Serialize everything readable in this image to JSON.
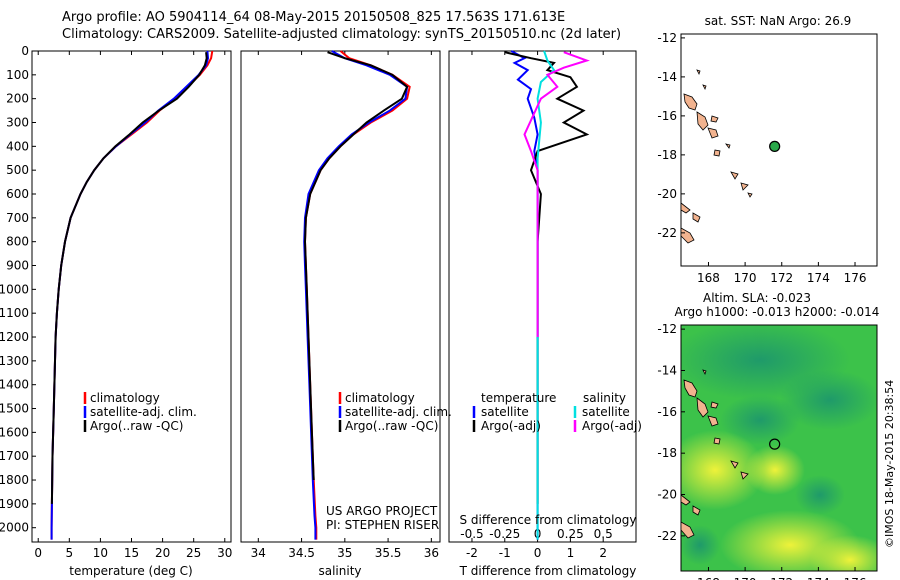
{
  "header": {
    "line1": "Argo profile: AO 5904114_64 08-May-2015 20150508_825 17.563S 171.613E",
    "line2": "Climatology: CARS2009. Satellite-adjusted climatology: synTS_20150510.nc (2d later)"
  },
  "side_note": "©IMOS 18-May-2015 20:38:54",
  "project_text": [
    "US ARGO PROJECT",
    "PI: STEPHEN RISER"
  ],
  "colors": {
    "climatology": "#ff0000",
    "satellite": "#0000ff",
    "argo": "#000000",
    "sal_satellite": "#00e0e0",
    "sal_argo": "#ff00ff",
    "land": "#f2b38f",
    "float_marker": "#2aa84a"
  },
  "chart_data": [
    {
      "id": "temperature",
      "type": "line",
      "xlabel": "temperature (deg C)",
      "ylabel": "",
      "xlim": [
        -1,
        31
      ],
      "ylim": [
        2060,
        0
      ],
      "xticks": [
        0,
        5,
        10,
        15,
        20,
        25,
        30
      ],
      "yticks": [
        0,
        100,
        200,
        300,
        400,
        500,
        600,
        700,
        800,
        900,
        1000,
        1100,
        1200,
        1300,
        1400,
        1500,
        1600,
        1700,
        1800,
        1900,
        2000
      ],
      "legend": [
        "climatology",
        "satellite-adj. clim.",
        "Argo(..raw -QC)"
      ],
      "series": [
        {
          "name": "climatology",
          "color_key": "climatology",
          "x": [
            28.0,
            27.8,
            27.2,
            26.0,
            24.0,
            22.0,
            19.5,
            17.5,
            15.0,
            12.5,
            10.5,
            9.0,
            7.8,
            6.8,
            5.2,
            4.3,
            3.7,
            3.3,
            3.0,
            2.8,
            2.6,
            2.5,
            2.3,
            2.2,
            2.15,
            2.15
          ],
          "y": [
            0,
            30,
            60,
            100,
            150,
            200,
            250,
            300,
            350,
            400,
            450,
            500,
            550,
            600,
            700,
            800,
            900,
            1000,
            1100,
            1200,
            1400,
            1500,
            1700,
            1900,
            2000,
            2050
          ]
        },
        {
          "name": "satellite-adj. clim.",
          "color_key": "satellite",
          "x": [
            27.2,
            27.3,
            27.0,
            25.8,
            23.8,
            21.8,
            19.3,
            17.2,
            14.8,
            12.5,
            10.5,
            9.0,
            7.8,
            6.8,
            5.2,
            4.3,
            3.7,
            3.3,
            3.0,
            2.8,
            2.6,
            2.5,
            2.3,
            2.2,
            2.15,
            2.15
          ],
          "y": [
            0,
            30,
            60,
            100,
            150,
            200,
            250,
            300,
            350,
            400,
            450,
            500,
            550,
            600,
            700,
            800,
            900,
            1000,
            1100,
            1200,
            1400,
            1500,
            1700,
            1900,
            2000,
            2050
          ]
        },
        {
          "name": "Argo(..raw -QC)",
          "color_key": "argo",
          "x": [
            27.0,
            27.1,
            26.8,
            25.9,
            24.2,
            22.3,
            19.4,
            16.8,
            14.7,
            12.4,
            10.5,
            9.0,
            7.8,
            6.8,
            5.2,
            4.3,
            3.7,
            3.3,
            3.0,
            2.8,
            2.6,
            2.5,
            2.3,
            2.2
          ],
          "y": [
            5,
            30,
            60,
            100,
            150,
            200,
            250,
            300,
            350,
            400,
            450,
            500,
            550,
            600,
            700,
            800,
            900,
            1000,
            1100,
            1200,
            1400,
            1500,
            1700,
            1900
          ]
        }
      ]
    },
    {
      "id": "salinity",
      "type": "line",
      "xlabel": "salinity",
      "ylabel": "",
      "xlim": [
        33.8,
        36.1
      ],
      "ylim": [
        2060,
        0
      ],
      "xticks": [
        34,
        34.5,
        35,
        35.5,
        36
      ],
      "legend": [
        "climatology",
        "satellite-adj. clim.",
        "Argo(..raw -QC)"
      ],
      "series": [
        {
          "name": "climatology",
          "color_key": "climatology",
          "x": [
            34.95,
            35.05,
            35.3,
            35.55,
            35.75,
            35.72,
            35.55,
            35.3,
            35.1,
            34.95,
            34.82,
            34.72,
            34.6,
            34.55,
            34.54,
            34.55,
            34.56,
            34.58,
            34.6,
            34.62,
            34.64,
            34.66,
            34.67,
            34.67
          ],
          "y": [
            0,
            30,
            60,
            100,
            150,
            200,
            250,
            300,
            350,
            400,
            450,
            500,
            600,
            700,
            800,
            900,
            1000,
            1200,
            1400,
            1600,
            1800,
            1950,
            2000,
            2050
          ]
        },
        {
          "name": "satellite-adj. clim.",
          "color_key": "satellite",
          "x": [
            34.85,
            35.0,
            35.25,
            35.52,
            35.72,
            35.7,
            35.52,
            35.28,
            35.08,
            34.93,
            34.8,
            34.7,
            34.58,
            34.54,
            34.53,
            34.54,
            34.55,
            34.57,
            34.59,
            34.61,
            34.63,
            34.65,
            34.66,
            34.66
          ],
          "y": [
            0,
            30,
            60,
            100,
            150,
            200,
            250,
            300,
            350,
            400,
            450,
            500,
            600,
            700,
            800,
            900,
            1000,
            1200,
            1400,
            1600,
            1800,
            1950,
            2000,
            2050
          ]
        },
        {
          "name": "Argo(..raw -QC)",
          "color_key": "argo",
          "x": [
            34.8,
            35.0,
            35.3,
            35.55,
            35.72,
            35.66,
            35.45,
            35.25,
            35.1,
            34.95,
            34.82,
            34.72,
            34.6,
            34.55,
            34.54,
            34.55,
            34.56,
            34.58,
            34.6,
            34.62,
            34.64
          ],
          "y": [
            5,
            30,
            60,
            100,
            150,
            200,
            250,
            300,
            350,
            400,
            450,
            500,
            600,
            700,
            800,
            900,
            1000,
            1200,
            1400,
            1600,
            1800
          ]
        }
      ]
    },
    {
      "id": "differences",
      "type": "line",
      "xlabel": "T difference from climatology",
      "x2label": "S difference from climatology",
      "ylabel": "",
      "xlim": [
        -2.7,
        3.0
      ],
      "ylim": [
        2060,
        0
      ],
      "xticks": [
        -2,
        -1,
        0,
        1,
        2
      ],
      "s_ticks": [
        -0.5,
        -0.25,
        0,
        0.25,
        0.5
      ],
      "legend_left_title": "temperature",
      "legend_right_title": "salinity",
      "legend_left": [
        "satellite",
        "Argo(-adj)"
      ],
      "legend_right": [
        "satellite",
        "Argo(-adj)"
      ],
      "series": [
        {
          "name": "T satellite",
          "color_key": "satellite",
          "x": [
            -0.8,
            -0.4,
            -0.7,
            -0.3,
            -0.6,
            -0.2,
            -0.3,
            -0.1,
            0.0,
            -0.1,
            0.0,
            0.0,
            0.0,
            0.0,
            0.0
          ],
          "y": [
            0,
            30,
            50,
            80,
            120,
            160,
            200,
            280,
            350,
            420,
            500,
            700,
            1000,
            1500,
            2050
          ]
        },
        {
          "name": "T Argo(-adj)",
          "color_key": "argo",
          "x": [
            -1.0,
            -0.2,
            0.5,
            0.3,
            1.0,
            1.2,
            0.6,
            1.4,
            0.8,
            1.5,
            0.0,
            -0.2,
            0.1,
            0.0,
            0.0,
            0.0,
            0.0
          ],
          "y": [
            5,
            30,
            50,
            80,
            110,
            150,
            200,
            250,
            300,
            350,
            420,
            500,
            600,
            800,
            1200,
            1600,
            1900
          ]
        },
        {
          "name": "S satellite",
          "color_key": "sal_satellite",
          "x": [
            0.2,
            0.3,
            0.5,
            0.1,
            0.0,
            0.1,
            0.0,
            0.0,
            0.0,
            0.0
          ],
          "y": [
            0,
            40,
            80,
            130,
            200,
            300,
            450,
            700,
            1200,
            2050
          ]
        },
        {
          "name": "S Argo(-adj)",
          "color_key": "sal_argo",
          "x": [
            0.8,
            1.5,
            0.8,
            0.3,
            0.6,
            0.1,
            -0.4,
            -0.2,
            0.0,
            0.0,
            0.0
          ],
          "y": [
            5,
            40,
            70,
            100,
            150,
            200,
            350,
            420,
            500,
            800,
            1200
          ]
        }
      ]
    },
    {
      "id": "sst_map",
      "type": "scatter",
      "title": "sat. SST: NaN Argo: 26.9",
      "xlim": [
        166.5,
        177.2
      ],
      "ylim": [
        -23.7,
        -11.8
      ],
      "xticks": [
        168,
        170,
        172,
        174,
        176
      ],
      "yticks": [
        -12,
        -14,
        -16,
        -18,
        -20,
        -22
      ],
      "points": [
        {
          "x": 171.613,
          "y": -17.563
        }
      ]
    },
    {
      "id": "sla_map",
      "type": "heatmap",
      "title_line1": "Altim. SLA: -0.023",
      "title_line2": "Argo h1000: -0.013 h2000: -0.014",
      "xlim": [
        166.5,
        177.2
      ],
      "ylim": [
        -23.7,
        -11.8
      ],
      "xticks": [
        168,
        170,
        172,
        174,
        176
      ],
      "yticks": [
        -12,
        -14,
        -16,
        -18,
        -20,
        -22
      ],
      "points": [
        {
          "x": 171.613,
          "y": -17.563
        }
      ]
    }
  ]
}
